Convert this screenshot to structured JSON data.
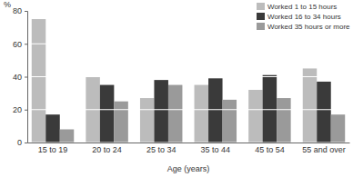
{
  "chart_data": {
    "type": "bar",
    "y_label": "%",
    "x_label": "Age (years)",
    "categories": [
      "15 to 19",
      "20 to 24",
      "25 to 34",
      "35 to 44",
      "45 to 54",
      "55 and over"
    ],
    "series": [
      {
        "name": "Worked 1 to 15 hours",
        "color": "#bcbcbc",
        "values": [
          75,
          40,
          27,
          35,
          32,
          45
        ]
      },
      {
        "name": "Worked 16 to 34 hours",
        "color": "#3a3a3a",
        "values": [
          17,
          35,
          38,
          39,
          41,
          37
        ]
      },
      {
        "name": "Worked 35 hours or more",
        "color": "#9a9a9a",
        "values": [
          8,
          25,
          35,
          26,
          27,
          17
        ]
      }
    ],
    "ylim": [
      0,
      80
    ],
    "yticks": [
      0,
      20,
      40,
      60,
      80
    ],
    "grid": true,
    "legend": "top-right"
  }
}
